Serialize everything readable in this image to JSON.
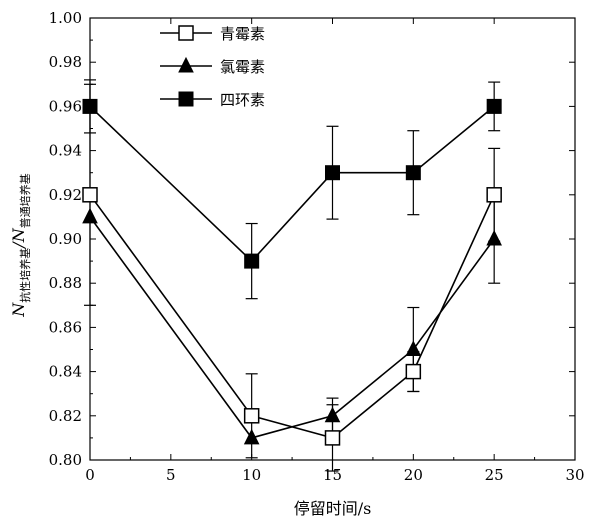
{
  "chart_data": {
    "type": "line",
    "xlabel": "停留时间/s",
    "ylabel": {
      "n1": "N",
      "sub1": "抗性培养基",
      "slash": "/N",
      "sub2": "普通培养基"
    },
    "xlim": [
      0,
      30
    ],
    "ylim": [
      0.8,
      1.0
    ],
    "x_ticks": [
      "0",
      "5",
      "10",
      "15",
      "20",
      "25",
      "30"
    ],
    "y_ticks": [
      "0.80",
      "0.82",
      "0.84",
      "0.86",
      "0.88",
      "0.90",
      "0.92",
      "0.94",
      "0.96",
      "0.98",
      "1.00"
    ],
    "legend_position": "top-left",
    "grid": false,
    "series": [
      {
        "name": "青霉素",
        "marker": "open-square",
        "x": [
          0,
          10,
          15,
          20,
          25
        ],
        "y": [
          0.92,
          0.82,
          0.81,
          0.84,
          0.92
        ],
        "err": [
          0.05,
          0.019,
          0.015,
          0.009,
          0.021
        ]
      },
      {
        "name": "氯霉素",
        "marker": "filled-triangle",
        "x": [
          0,
          10,
          15,
          20,
          25
        ],
        "y": [
          0.91,
          0.81,
          0.82,
          0.85,
          0.9
        ],
        "err": [
          0,
          0,
          0.008,
          0.019,
          0.02
        ]
      },
      {
        "name": "四环素",
        "marker": "filled-square",
        "x": [
          0,
          10,
          15,
          20,
          25
        ],
        "y": [
          0.96,
          0.89,
          0.93,
          0.93,
          0.96
        ],
        "err": [
          0.012,
          0.017,
          0.021,
          0.019,
          0.011
        ]
      }
    ]
  }
}
